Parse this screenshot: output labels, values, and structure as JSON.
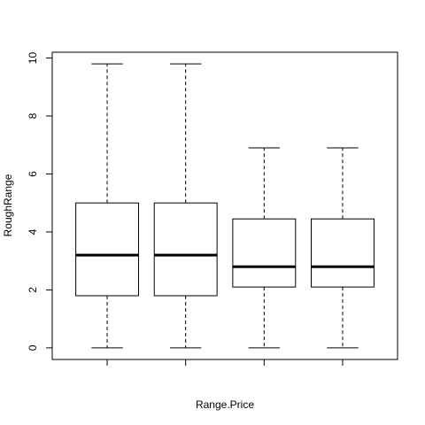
{
  "chart_data": {
    "type": "boxplot",
    "xlabel": "Range.Price",
    "ylabel": "RoughRange",
    "ylim": [
      -0.4,
      10.2
    ],
    "yticks": [
      0,
      2,
      4,
      6,
      8,
      10
    ],
    "ytick_labels": [
      "0",
      "2",
      "4",
      "6",
      "8",
      "10"
    ],
    "categories": [
      "",
      "",
      "",
      ""
    ],
    "boxes": [
      {
        "whisker_low": 0,
        "q1": 1.8,
        "median": 3.2,
        "q3": 5.0,
        "whisker_high": 9.8
      },
      {
        "whisker_low": 0,
        "q1": 1.8,
        "median": 3.2,
        "q3": 5.0,
        "whisker_high": 9.8
      },
      {
        "whisker_low": 0,
        "q1": 2.1,
        "median": 2.8,
        "q3": 4.45,
        "whisker_high": 6.9
      },
      {
        "whisker_low": 0,
        "q1": 2.1,
        "median": 2.8,
        "q3": 4.45,
        "whisker_high": 6.9
      }
    ],
    "grid": false,
    "legend": "none",
    "colors": {
      "box_fill": "#ffffff",
      "stroke": "#000000"
    }
  }
}
